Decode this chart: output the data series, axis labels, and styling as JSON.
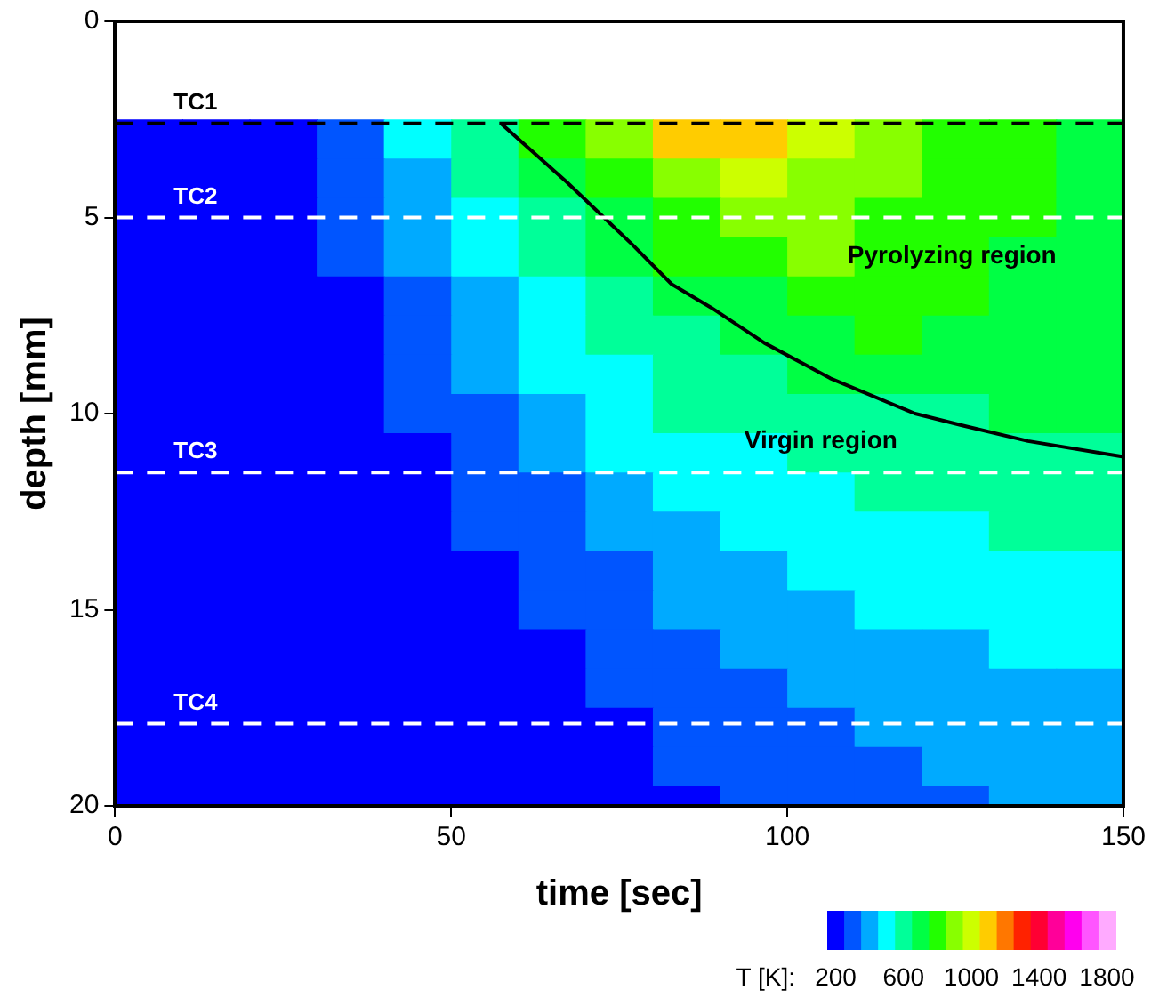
{
  "chart_data": {
    "type": "heatmap",
    "xlabel": "time [sec]",
    "ylabel": "depth [mm]",
    "clabel": "T [K]:",
    "x": [
      5,
      15,
      25,
      35,
      45,
      55,
      65,
      75,
      85,
      95,
      105,
      115,
      125,
      135,
      145
    ],
    "y": [
      3,
      4,
      5,
      6,
      7,
      8,
      9,
      10,
      11,
      12,
      13,
      14,
      15,
      16,
      17,
      18,
      19,
      20
    ],
    "cells": [
      [
        200,
        200,
        200,
        300,
        500,
        600,
        800,
        900,
        1100,
        1100,
        1000,
        900,
        800,
        800,
        700
      ],
      [
        200,
        200,
        200,
        300,
        400,
        600,
        700,
        800,
        900,
        1000,
        900,
        900,
        800,
        800,
        700
      ],
      [
        200,
        200,
        200,
        300,
        400,
        500,
        600,
        700,
        800,
        900,
        900,
        800,
        800,
        800,
        700
      ],
      [
        200,
        200,
        200,
        300,
        400,
        500,
        600,
        700,
        800,
        800,
        900,
        800,
        800,
        700,
        700
      ],
      [
        200,
        200,
        200,
        200,
        300,
        400,
        500,
        600,
        700,
        700,
        800,
        800,
        800,
        700,
        700
      ],
      [
        200,
        200,
        200,
        200,
        300,
        400,
        500,
        600,
        600,
        700,
        700,
        800,
        700,
        700,
        700
      ],
      [
        200,
        200,
        200,
        200,
        300,
        400,
        500,
        500,
        600,
        600,
        700,
        700,
        700,
        700,
        700
      ],
      [
        200,
        200,
        200,
        200,
        300,
        300,
        400,
        500,
        600,
        600,
        600,
        600,
        600,
        700,
        700
      ],
      [
        200,
        200,
        200,
        200,
        200,
        300,
        400,
        500,
        500,
        500,
        600,
        600,
        600,
        600,
        600
      ],
      [
        200,
        200,
        200,
        200,
        200,
        300,
        300,
        400,
        500,
        500,
        500,
        600,
        600,
        600,
        600
      ],
      [
        200,
        200,
        200,
        200,
        200,
        300,
        300,
        400,
        400,
        500,
        500,
        500,
        500,
        600,
        600
      ],
      [
        200,
        200,
        200,
        200,
        200,
        200,
        300,
        300,
        400,
        400,
        500,
        500,
        500,
        500,
        500
      ],
      [
        200,
        200,
        200,
        200,
        200,
        200,
        300,
        300,
        400,
        400,
        400,
        500,
        500,
        500,
        500
      ],
      [
        200,
        200,
        200,
        200,
        200,
        200,
        200,
        300,
        300,
        400,
        400,
        400,
        400,
        500,
        500
      ],
      [
        200,
        200,
        200,
        200,
        200,
        200,
        200,
        300,
        300,
        300,
        400,
        400,
        400,
        400,
        400
      ],
      [
        200,
        200,
        200,
        200,
        200,
        200,
        200,
        200,
        300,
        300,
        300,
        400,
        400,
        400,
        400
      ],
      [
        200,
        200,
        200,
        200,
        200,
        200,
        200,
        200,
        300,
        300,
        300,
        300,
        400,
        400,
        400
      ],
      [
        200,
        200,
        200,
        200,
        200,
        200,
        200,
        200,
        200,
        300,
        300,
        300,
        300,
        400,
        400
      ]
    ],
    "colors": [
      "#0000ff",
      "#0055ff",
      "#00aaff",
      "#00ffff",
      "#00ff99",
      "#00ff44",
      "#22ff00",
      "#88ff00",
      "#ccff00",
      "#ffcc00",
      "#ff7700",
      "#ff2200",
      "#ff0033",
      "#ff0099",
      "#ff00ee",
      "#ff55ff",
      "#ffaaff"
    ],
    "clim": [
      150,
      1850
    ],
    "cticks": [
      200,
      600,
      1000,
      1400,
      1800
    ],
    "xlim": [
      0,
      150
    ],
    "xticks": [
      0,
      50,
      100,
      150
    ],
    "ylim": [
      20,
      0
    ],
    "yticks": [
      0,
      5,
      10,
      15,
      20
    ],
    "grid": false,
    "legend": false,
    "series": [
      {
        "type": "line",
        "color": "#000000",
        "marker": "none",
        "x": [
          57.4,
          67.2,
          77,
          82.8,
          88.7,
          96.6,
          106.4,
          119,
          126,
          135.8,
          150
        ],
        "values": [
          2.6,
          4.1,
          5.7,
          6.7,
          7.3,
          8.2,
          9.1,
          10,
          10.3,
          10.7,
          11.1
        ]
      }
    ],
    "ref_lines": [
      {
        "axis": "y",
        "value": 2.6,
        "label": "TC1",
        "color": "#000000",
        "line_style": "dashed"
      },
      {
        "axis": "y",
        "value": 5,
        "label": "TC2",
        "color": "#ffffff",
        "line_style": "dashed"
      },
      {
        "axis": "y",
        "value": 11.5,
        "label": "TC3",
        "color": "#ffffff",
        "line_style": "dashed"
      },
      {
        "axis": "y",
        "value": 17.9,
        "label": "TC4",
        "color": "#ffffff",
        "line_style": "dashed"
      }
    ],
    "annotations": [
      "Pyrolyzing region",
      "Virgin region"
    ]
  }
}
